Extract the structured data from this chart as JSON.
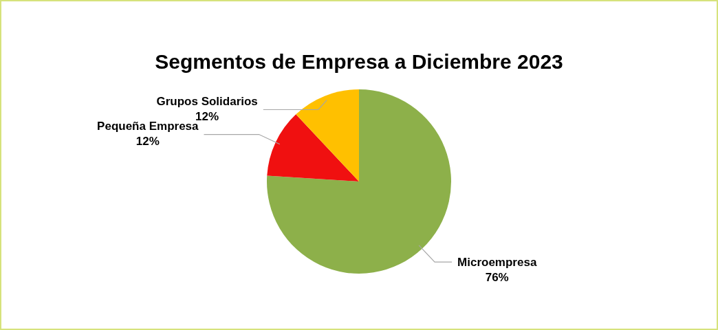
{
  "chart_data": {
    "type": "pie",
    "title": "Segmentos de Empresa a Diciembre 2023",
    "categories": [
      "Microempresa",
      "Pequeña Empresa",
      "Grupos Solidarios"
    ],
    "values": [
      76,
      12,
      12
    ],
    "value_labels": [
      "76%",
      "12%",
      "12%"
    ],
    "colors": [
      "#8db04a",
      "#f01010",
      "#ffc000"
    ],
    "legend": false
  }
}
